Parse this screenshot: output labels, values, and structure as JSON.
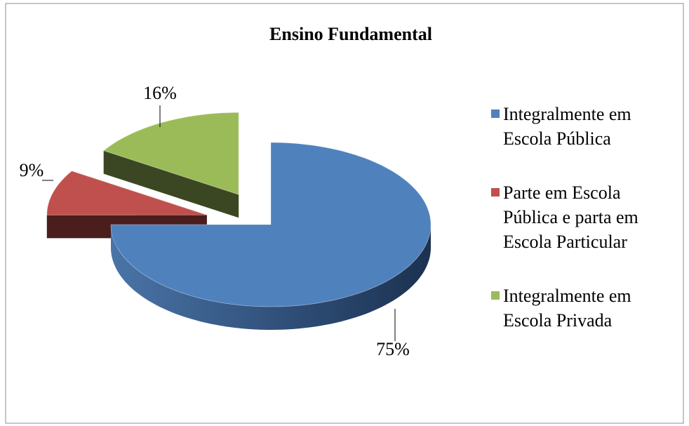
{
  "chart_data": {
    "type": "pie3d",
    "title": "Ensino Fundamental",
    "categories": [
      "Integralmente em Escola Pública",
      "Parte em Escola Pública e parta em Escola Particular",
      "Integralmente em Escola Privada"
    ],
    "values": [
      75,
      9,
      16
    ],
    "value_labels": [
      "75%",
      "9%",
      "16%"
    ],
    "colors": [
      "#4f81bd",
      "#c0504d",
      "#9bbb59"
    ],
    "legend": "right"
  }
}
